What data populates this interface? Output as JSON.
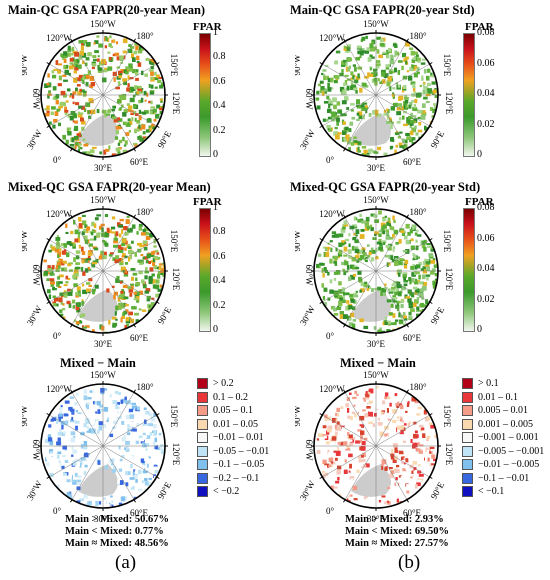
{
  "panels": [
    {
      "title": "Main-QC GSA FAPR(20-year Mean)",
      "bar_title": "FPAR",
      "ticks": [
        "1",
        "0.8",
        "0.6",
        "0.4",
        "0.2",
        "0"
      ],
      "scheme": "mean"
    },
    {
      "title": "Main-QC GSA FAPR(20-year Std)",
      "bar_title": "FPAR",
      "ticks": [
        "0.08",
        "0.06",
        "0.04",
        "0.02",
        "0"
      ],
      "scheme": "std"
    },
    {
      "title": "Mixed-QC GSA FAPR(20-year Mean)",
      "bar_title": "FPAR",
      "ticks": [
        "1",
        "0.8",
        "0.6",
        "0.4",
        "0.2",
        "0"
      ],
      "scheme": "mean"
    },
    {
      "title": "Mixed-QC GSA FAPR(20-year Std)",
      "bar_title": "FPAR",
      "ticks": [
        "0.08",
        "0.06",
        "0.04",
        "0.02",
        "0"
      ],
      "scheme": "std"
    },
    {
      "title": "Mixed − Main",
      "scheme": "diff_a",
      "legend": [
        "> 0.2",
        "0.1 – 0.2",
        "0.05 – 0.1",
        "0.01 – 0.05",
        "−0.01 – 0.01",
        "−0.05 – −0.01",
        "−0.1 – −0.05",
        "−0.2 – −0.1",
        "< −0.2"
      ],
      "stats": [
        "Main > Mixed: 50.67%",
        "Main < Mixed: 0.77%",
        "Main ≈ Mixed: 48.56%"
      ]
    },
    {
      "title": "Mixed − Main",
      "scheme": "diff_b",
      "legend": [
        "> 0.1",
        "0.01 – 0.1",
        "0.005 – 0.01",
        "0.001 – 0.005",
        "−0.001 – 0.001",
        "−0.005 – −0.001",
        "−0.01 – −0.005",
        "−0.1 – −0.01",
        "< −0.1"
      ],
      "stats": [
        "Main > Mixed: 2.93%",
        "Main < Mixed: 69.50%",
        "Main ≈ Mixed: 27.57%"
      ]
    }
  ],
  "map_labels": {
    "lon150w": "150°W",
    "lon180": "180°",
    "lon120w": "120°W",
    "lon150e": "150°E",
    "lon90w": "90°W",
    "lon120e": "120°E",
    "lon60w": "60°W",
    "lon90e": "90°E",
    "lon30w": "30°W",
    "lon60e": "60°E",
    "lon0": "0°",
    "lon30e": "30°E"
  },
  "legend_colors": [
    "#b30018",
    "#e8363a",
    "#f59c88",
    "#fad8b0",
    "#f7f7f7",
    "#bfe4f5",
    "#7fc0ec",
    "#3868e0",
    "#1010c0"
  ],
  "captions": {
    "a": "(a)",
    "b": "(b)"
  }
}
